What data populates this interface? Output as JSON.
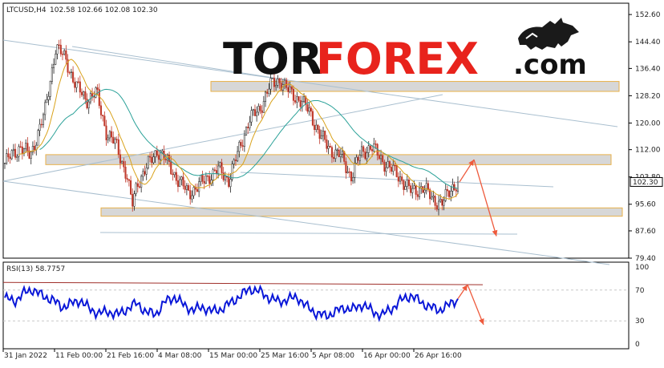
{
  "header": {
    "symbol_label": "LTCUSD,H4",
    "ohlc_label": "102.58 102.66 102.08 102.30"
  },
  "logo": {
    "text_dark": "TOR",
    "text_red": "FOREX",
    "text_suffix": ".com",
    "color_dark": "#111111",
    "color_red": "#e8231c",
    "icon": "bull-icon"
  },
  "current_price_label": "102.30",
  "chart_data": [
    {
      "type": "candlestick",
      "title": "",
      "ylim": [
        79.4,
        156.0
      ],
      "y_ticks": [
        "152.60",
        "144.40",
        "136.40",
        "128.20",
        "120.00",
        "112.00",
        "103.80",
        "95.60",
        "87.60",
        "79.40"
      ],
      "x_ticks": [
        "31 Jan 2022",
        "11 Feb 00:00",
        "21 Feb 16:00",
        "4 Mar 08:00",
        "15 Mar 00:00",
        "25 Mar 16:00",
        "5 Apr 08:00",
        "16 Apr 00:00",
        "26 Apr 16:00"
      ],
      "last_price": 102.3,
      "price_path": [
        [
          0,
          108
        ],
        [
          3,
          113
        ],
        [
          5,
          110
        ],
        [
          8,
          124
        ],
        [
          10,
          143
        ],
        [
          12,
          139
        ],
        [
          14,
          131
        ],
        [
          16,
          127
        ],
        [
          18,
          129
        ],
        [
          20,
          117
        ],
        [
          22,
          113
        ],
        [
          24,
          104
        ],
        [
          25,
          95
        ],
        [
          26,
          102
        ],
        [
          28,
          107
        ],
        [
          30,
          112
        ],
        [
          32,
          108
        ],
        [
          34,
          103
        ],
        [
          36,
          99
        ],
        [
          38,
          101
        ],
        [
          40,
          104
        ],
        [
          42,
          106
        ],
        [
          44,
          103
        ],
        [
          46,
          112
        ],
        [
          48,
          121
        ],
        [
          50,
          124
        ],
        [
          52,
          131
        ],
        [
          54,
          133
        ],
        [
          56,
          129
        ],
        [
          58,
          127
        ],
        [
          60,
          123
        ],
        [
          62,
          116
        ],
        [
          64,
          112
        ],
        [
          66,
          110
        ],
        [
          68,
          104
        ],
        [
          70,
          111
        ],
        [
          72,
          113
        ],
        [
          74,
          109
        ],
        [
          76,
          106
        ],
        [
          78,
          103
        ],
        [
          80,
          99
        ],
        [
          82,
          101
        ],
        [
          84,
          97
        ],
        [
          86,
          96
        ],
        [
          88,
          101
        ],
        [
          89,
          102.3
        ]
      ],
      "support_resistance_zones": [
        [
          129.5,
          132.5
        ],
        [
          107.5,
          110.5
        ],
        [
          92.0,
          94.5
        ]
      ],
      "projection": {
        "from": 102.3,
        "up_to": 109.0,
        "down_to": 86.0
      },
      "color_up": "#ffffff",
      "color_down": "#c0392b",
      "ma_fast_color": "#d9a21b",
      "ma_slow_color": "#2aa198",
      "channel_line_color": "#a9bfcf",
      "zone_fill": "#d7d7d7",
      "zone_border": "#e8b24a",
      "projection_color": "#ee5a3c"
    },
    {
      "type": "line",
      "title": "RSI(13) 58.7757",
      "ylim": [
        0,
        100
      ],
      "y_ticks": [
        "100",
        "70",
        "30",
        "0"
      ],
      "levels": [
        70,
        30
      ],
      "series": [
        {
          "name": "RSI(13)",
          "color": "#0a17d8",
          "values": [
            60,
            55,
            66,
            71,
            62,
            58,
            48,
            52,
            57,
            45,
            40,
            42,
            38,
            46,
            53,
            41,
            39,
            55,
            61,
            50,
            44,
            48,
            42,
            46,
            54,
            63,
            72,
            68,
            60,
            55,
            58,
            61,
            48,
            40,
            36,
            42,
            47,
            45,
            52,
            41,
            38,
            46,
            57,
            63,
            55,
            48,
            44,
            50,
            58.7757
          ]
        }
      ],
      "trendline": {
        "from": 80,
        "to": 77
      },
      "trendline_color": "#a0302b",
      "projection": {
        "up_to": 77,
        "down_to": 25
      }
    }
  ]
}
